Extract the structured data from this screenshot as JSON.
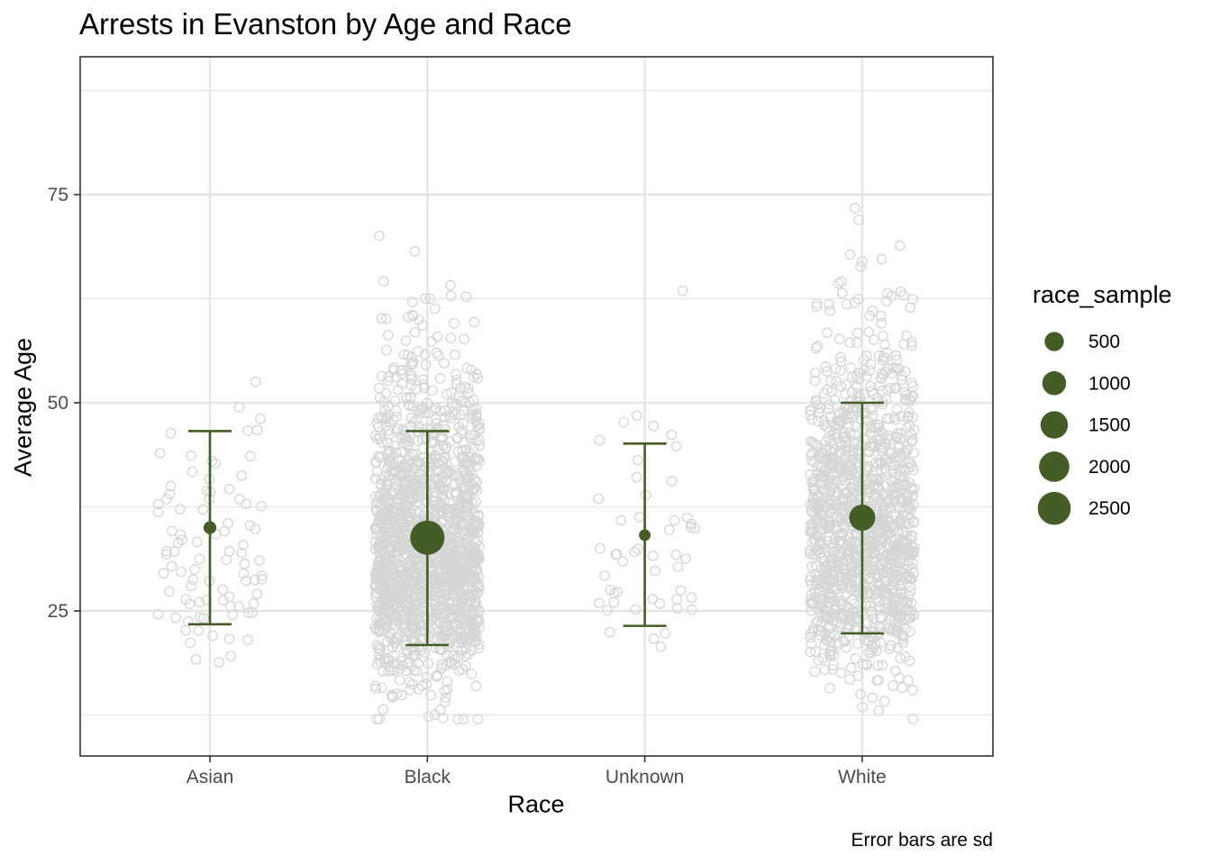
{
  "chart_data": {
    "type": "scatter",
    "title": "Arrests in Evanston by Age and Race",
    "xlabel": "Race",
    "ylabel": "Average Age",
    "caption": "Error bars are sd",
    "categories": [
      "Asian",
      "Black",
      "Unknown",
      "White"
    ],
    "ylim": [
      10,
      90
    ],
    "yticks": [
      25,
      50,
      75
    ],
    "grid": true,
    "legend": {
      "title": "race_sample",
      "position": "right",
      "entries": [
        {
          "label": "500",
          "value": 500
        },
        {
          "label": "1000",
          "value": 1000
        },
        {
          "label": "1500",
          "value": 1500
        },
        {
          "label": "2000",
          "value": 2000
        },
        {
          "label": "2500",
          "value": 2500
        }
      ]
    },
    "series": [
      {
        "category": "Asian",
        "mean": 35.0,
        "sd_low": 23.4,
        "sd_high": 46.6,
        "race_sample": 90
      },
      {
        "category": "Black",
        "mean": 33.8,
        "sd_low": 20.9,
        "sd_high": 46.6,
        "race_sample": 2750
      },
      {
        "category": "Unknown",
        "mean": 34.1,
        "sd_low": 23.2,
        "sd_high": 45.1,
        "race_sample": 50
      },
      {
        "category": "White",
        "mean": 36.2,
        "sd_low": 22.3,
        "sd_high": 50.0,
        "race_sample": 1300
      }
    ],
    "colors": {
      "summary": "#445c25",
      "points": "#d6d6d6",
      "grid": "#e5e5e5",
      "panel_border": "#333333"
    }
  }
}
